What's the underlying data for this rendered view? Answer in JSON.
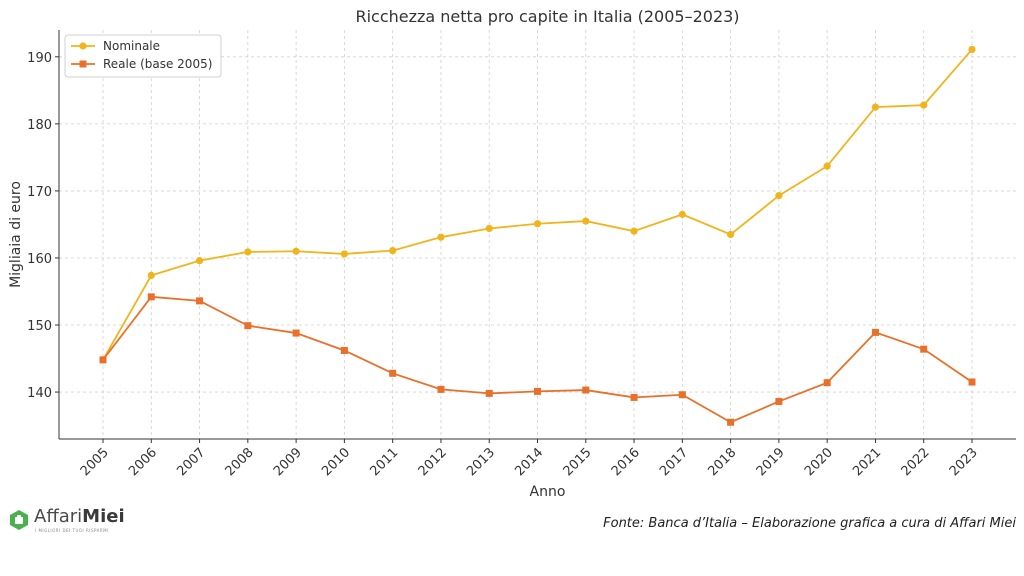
{
  "chart_data": {
    "type": "line",
    "title": "Ricchezza netta pro capite in Italia (2005–2023)",
    "xlabel": "Anno",
    "ylabel": "Migliaia di euro",
    "categories": [
      "2005",
      "2006",
      "2007",
      "2008",
      "2009",
      "2010",
      "2011",
      "2012",
      "2013",
      "2014",
      "2015",
      "2016",
      "2017",
      "2018",
      "2019",
      "2020",
      "2021",
      "2022",
      "2023"
    ],
    "yticks": [
      140,
      150,
      160,
      170,
      180,
      190
    ],
    "ylim": [
      133,
      194
    ],
    "grid": true,
    "legend_position": "top-left",
    "series": [
      {
        "name": "Nominale",
        "color": "#f0b51c",
        "marker": "circle",
        "values": [
          144.8,
          157.4,
          159.6,
          160.9,
          161.0,
          160.6,
          161.1,
          163.1,
          164.4,
          165.1,
          165.5,
          164.0,
          166.5,
          163.5,
          169.3,
          173.7,
          182.5,
          182.8,
          191.1
        ]
      },
      {
        "name": "Reale (base 2005)",
        "color": "#e8702a",
        "marker": "square",
        "values": [
          144.8,
          154.2,
          153.6,
          149.9,
          148.8,
          146.2,
          142.8,
          140.4,
          139.8,
          140.1,
          140.3,
          139.2,
          139.6,
          135.5,
          138.6,
          141.4,
          148.9,
          146.4,
          141.5
        ]
      }
    ]
  },
  "footer": {
    "logo_word1": "Affari",
    "logo_word2": "Miei",
    "logo_tagline": "I MIGLIORI DEI TUOI RISPARMI",
    "source": "Fonte: Banca d’Italia – Elaborazione grafica a cura di Affari Miei"
  },
  "colors": {
    "logo_green": "#4caf50",
    "axis": "#333333",
    "grid": "#cfcfcf"
  }
}
